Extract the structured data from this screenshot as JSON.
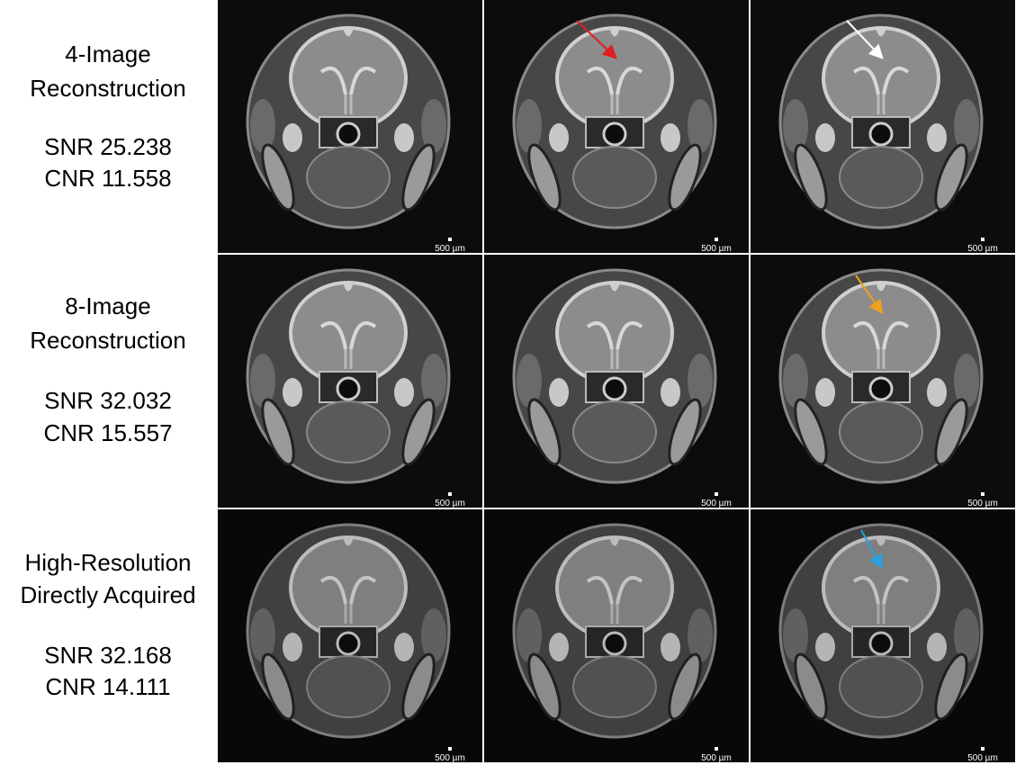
{
  "rows": [
    {
      "label": [
        "4-Image",
        "Reconstruction"
      ],
      "snr": "SNR 25.238",
      "cnr": "CNR 11.558",
      "scale_bars": [
        "500 µm",
        "500 µm",
        "500 µm"
      ]
    },
    {
      "label": [
        "8-Image",
        "Reconstruction"
      ],
      "snr": "SNR 32.032",
      "cnr": "CNR 15.557",
      "scale_bars": [
        "500 µm",
        "500 µm",
        "500 µm"
      ]
    },
    {
      "label": [
        "High-Resolution",
        "Directly Acquired"
      ],
      "snr": "SNR 32.168",
      "cnr": "CNR 14.111",
      "scale_bars": [
        "500 µm",
        "500 µm",
        "500 µm"
      ]
    }
  ]
}
